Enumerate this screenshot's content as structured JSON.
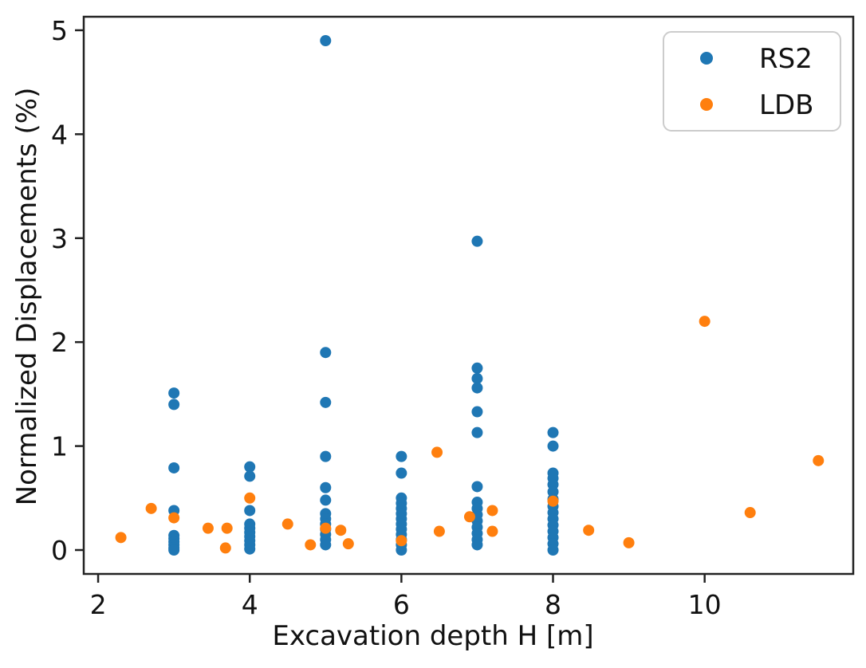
{
  "chart_data": {
    "type": "scatter",
    "title": "",
    "xlabel": "Excavation depth H [m]",
    "ylabel": "Normalized Displacements (%)",
    "xlim": [
      1.81,
      11.96
    ],
    "ylim": [
      -0.23,
      5.13
    ],
    "xticks": [
      2,
      4,
      6,
      8,
      10
    ],
    "yticks": [
      0,
      1,
      2,
      3,
      4,
      5
    ],
    "grid": false,
    "legend_position": "upper right",
    "marker": "circle",
    "series": [
      {
        "name": "RS2",
        "color": "#1f77b4",
        "points": [
          [
            3,
            1.51
          ],
          [
            3,
            1.4
          ],
          [
            3,
            0.79
          ],
          [
            3,
            0.38
          ],
          [
            3,
            0.14
          ],
          [
            3,
            0.11
          ],
          [
            3,
            0.08
          ],
          [
            3,
            0.05
          ],
          [
            3,
            0.02
          ],
          [
            3,
            0.0
          ],
          [
            4,
            0.8
          ],
          [
            4,
            0.71
          ],
          [
            4,
            0.38
          ],
          [
            4,
            0.25
          ],
          [
            4,
            0.21
          ],
          [
            4,
            0.17
          ],
          [
            4,
            0.13
          ],
          [
            4,
            0.09
          ],
          [
            4,
            0.05
          ],
          [
            4,
            0.01
          ],
          [
            5,
            4.9
          ],
          [
            5,
            1.9
          ],
          [
            5,
            1.42
          ],
          [
            5,
            0.9
          ],
          [
            5,
            0.6
          ],
          [
            5,
            0.48
          ],
          [
            5,
            0.35
          ],
          [
            5,
            0.3
          ],
          [
            5,
            0.25
          ],
          [
            5,
            0.2
          ],
          [
            5,
            0.15
          ],
          [
            5,
            0.1
          ],
          [
            5,
            0.05
          ],
          [
            6,
            0.9
          ],
          [
            6,
            0.74
          ],
          [
            6,
            0.5
          ],
          [
            6,
            0.45
          ],
          [
            6,
            0.4
          ],
          [
            6,
            0.35
          ],
          [
            6,
            0.3
          ],
          [
            6,
            0.25
          ],
          [
            6,
            0.2
          ],
          [
            6,
            0.15
          ],
          [
            6,
            0.1
          ],
          [
            6,
            0.05
          ],
          [
            6,
            0.0
          ],
          [
            7,
            2.97
          ],
          [
            7,
            1.75
          ],
          [
            7,
            1.65
          ],
          [
            7,
            1.56
          ],
          [
            7,
            1.33
          ],
          [
            7,
            1.13
          ],
          [
            7,
            0.61
          ],
          [
            7,
            0.46
          ],
          [
            7,
            0.4
          ],
          [
            7,
            0.34
          ],
          [
            7,
            0.28
          ],
          [
            7,
            0.22
          ],
          [
            7,
            0.16
          ],
          [
            7,
            0.1
          ],
          [
            7,
            0.05
          ],
          [
            8,
            1.13
          ],
          [
            8,
            1.0
          ],
          [
            8,
            0.74
          ],
          [
            8,
            0.69
          ],
          [
            8,
            0.63
          ],
          [
            8,
            0.56
          ],
          [
            8,
            0.49
          ],
          [
            8,
            0.42
          ],
          [
            8,
            0.36
          ],
          [
            8,
            0.3
          ],
          [
            8,
            0.24
          ],
          [
            8,
            0.18
          ],
          [
            8,
            0.12
          ],
          [
            8,
            0.06
          ],
          [
            8,
            0.0
          ]
        ]
      },
      {
        "name": "LDB",
        "color": "#ff7f0e",
        "points": [
          [
            2.3,
            0.12
          ],
          [
            2.7,
            0.4
          ],
          [
            3.0,
            0.31
          ],
          [
            3.45,
            0.21
          ],
          [
            3.7,
            0.21
          ],
          [
            3.68,
            0.02
          ],
          [
            4.0,
            0.5
          ],
          [
            4.5,
            0.25
          ],
          [
            4.8,
            0.05
          ],
          [
            5.0,
            0.21
          ],
          [
            5.2,
            0.19
          ],
          [
            5.3,
            0.06
          ],
          [
            6.0,
            0.09
          ],
          [
            6.47,
            0.94
          ],
          [
            6.5,
            0.18
          ],
          [
            6.9,
            0.32
          ],
          [
            7.2,
            0.38
          ],
          [
            7.2,
            0.18
          ],
          [
            8.0,
            0.47
          ],
          [
            8.47,
            0.19
          ],
          [
            9.0,
            0.07
          ],
          [
            10.0,
            2.2
          ],
          [
            10.6,
            0.36
          ],
          [
            11.5,
            0.86
          ]
        ]
      }
    ],
    "style": {
      "spine_color": "#222222",
      "tick_color": "#222222",
      "text_color": "#111111",
      "legend_border_color": "#cccccc",
      "background": "#ffffff"
    }
  }
}
